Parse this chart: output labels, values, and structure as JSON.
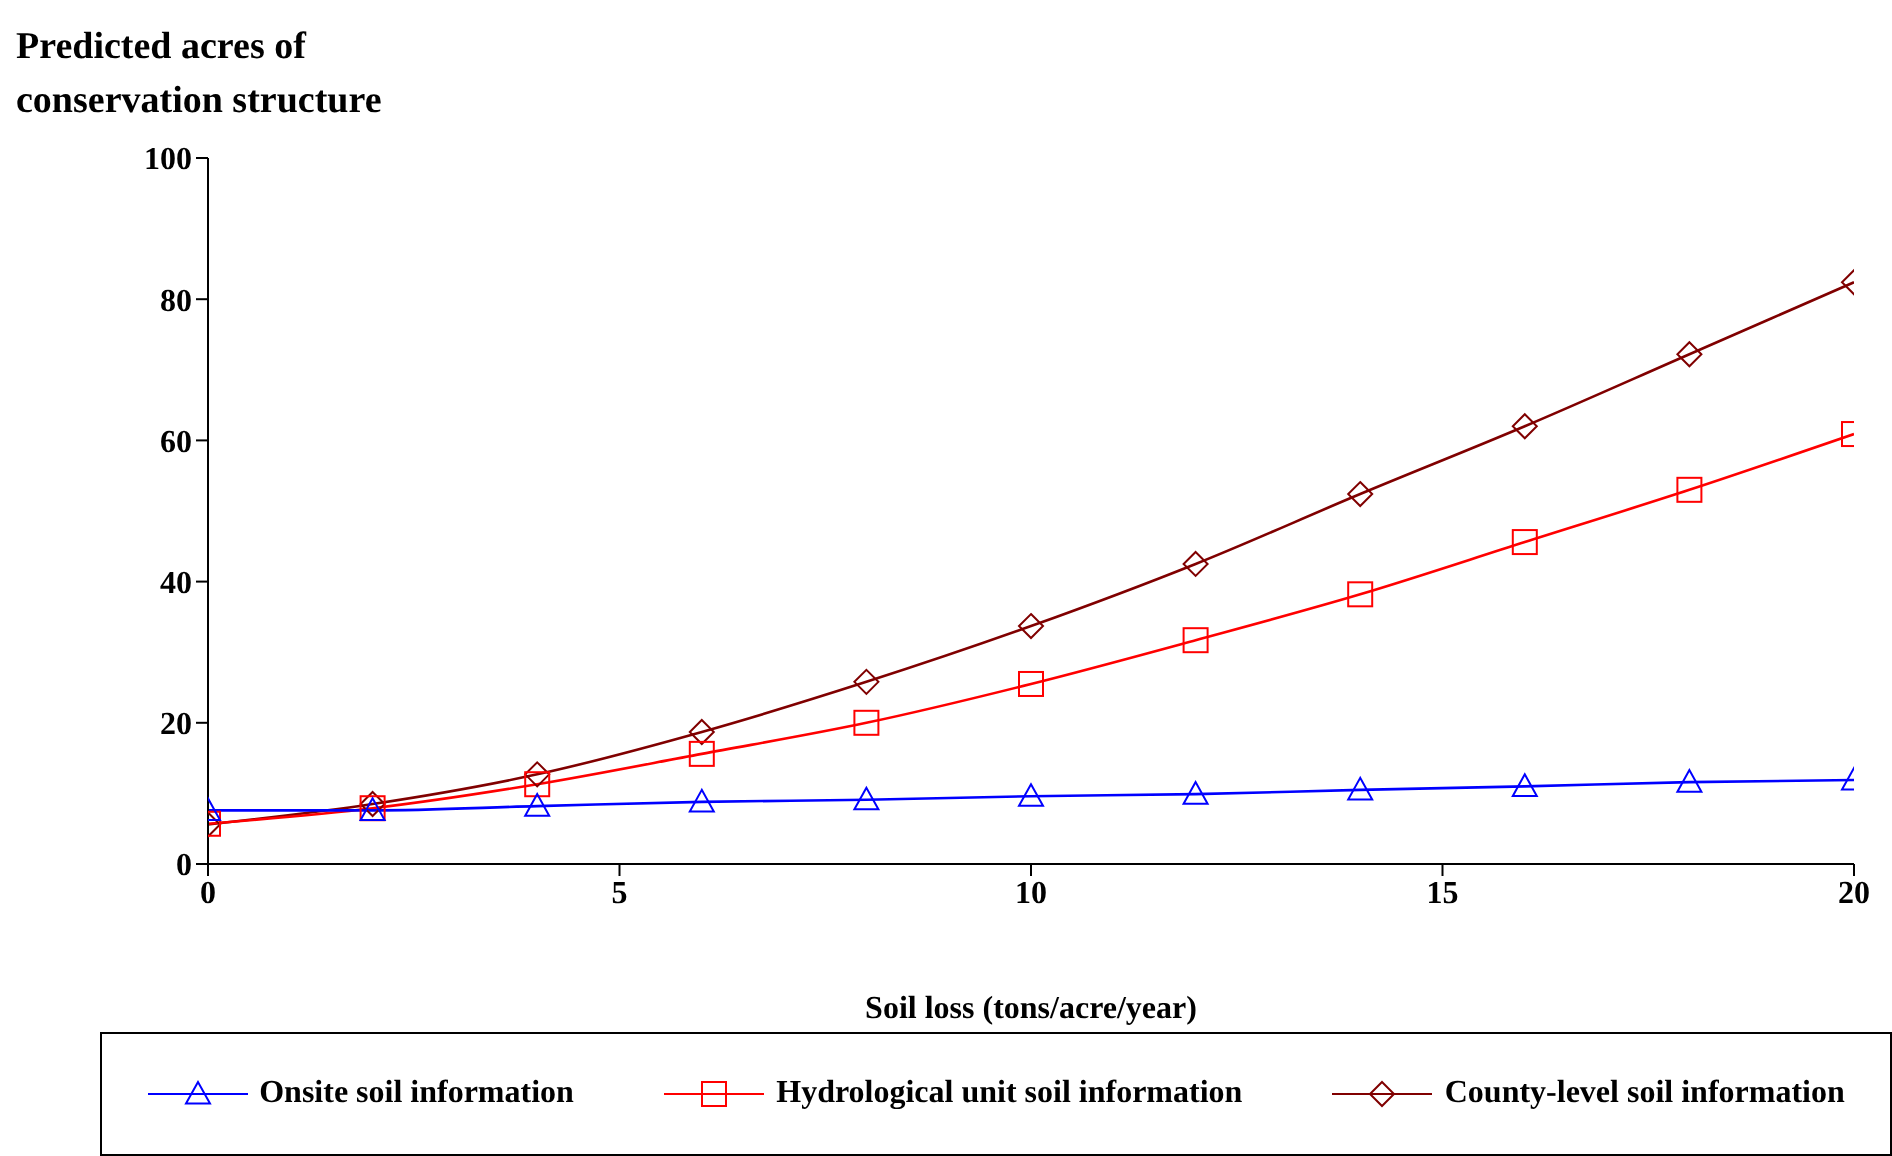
{
  "chart_data": {
    "type": "line",
    "ylabel": "Predicted acres of conservation structure",
    "xlabel": "Soil loss (tons/acre/year)",
    "x": [
      0,
      2,
      4,
      6,
      8,
      10,
      12,
      14,
      16,
      18,
      20
    ],
    "series": [
      {
        "name": "Onsite soil information",
        "color": "#0000ff",
        "marker": "triangle",
        "values": [
          7.6,
          7.6,
          8.2,
          8.8,
          9.1,
          9.6,
          9.9,
          10.5,
          11,
          11.6,
          11.9
        ]
      },
      {
        "name": "Hydrological unit soil information",
        "color": "#ff0000",
        "marker": "square",
        "values": [
          5.7,
          7.9,
          11.3,
          15.6,
          20,
          25.5,
          31.7,
          38.2,
          45.6,
          53,
          60.9
        ]
      },
      {
        "name": "County-level soil information",
        "color": "#800000",
        "marker": "diamond",
        "values": [
          5.6,
          8.5,
          12.7,
          18.7,
          25.8,
          33.7,
          42.5,
          52.4,
          62,
          72.2,
          82.4
        ]
      }
    ],
    "xlim": [
      0,
      20
    ],
    "xticks": [
      0,
      5,
      10,
      15,
      20
    ],
    "ylim": [
      0,
      100
    ],
    "yticks": [
      0,
      20,
      40,
      60,
      80,
      100
    ],
    "grid": false,
    "legend": "bottom",
    "line_style": "solid"
  }
}
